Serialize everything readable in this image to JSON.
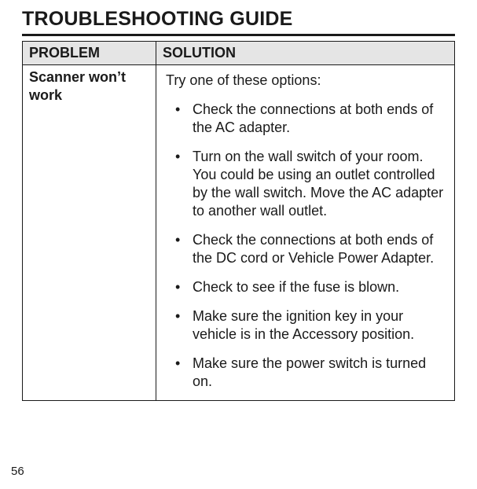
{
  "title": "TROUBLESHOOTING GUIDE",
  "headers": {
    "problem": "PROBLEM",
    "solution": "SOLUTION"
  },
  "row": {
    "problem": "Scanner won’t work",
    "intro": "Try one of these options:",
    "items": [
      "Check the connections at both ends of the AC adapter.",
      "Turn on the wall switch of your room. You could be using an outlet controlled by the wall switch. Move the AC adapter to another wall outlet.",
      "Check the connections at both ends of the DC cord or Vehicle Power Adapter.",
      "Check to see if the fuse is blown.",
      "Make sure the ignition key in your vehicle is in the Accessory position.",
      "Make sure the power switch is turned on."
    ]
  },
  "pageNumber": "56",
  "colors": {
    "headerBg": "#e5e5e5",
    "border": "#1a1a1a",
    "text": "#1a1a1a",
    "pageBg": "#ffffff"
  },
  "fonts": {
    "titleSize": 25,
    "bodySize": 18,
    "pageNumSize": 15
  }
}
